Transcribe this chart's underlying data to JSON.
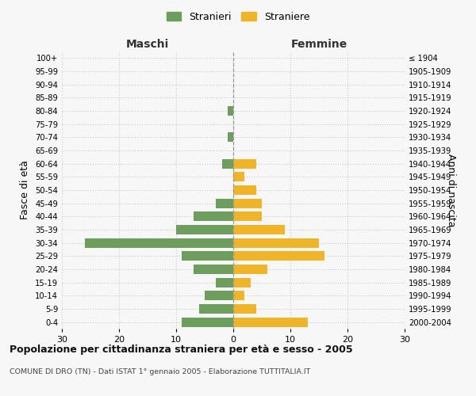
{
  "age_groups": [
    "100+",
    "95-99",
    "90-94",
    "85-89",
    "80-84",
    "75-79",
    "70-74",
    "65-69",
    "60-64",
    "55-59",
    "50-54",
    "45-49",
    "40-44",
    "35-39",
    "30-34",
    "25-29",
    "20-24",
    "15-19",
    "10-14",
    "5-9",
    "0-4"
  ],
  "birth_years": [
    "≤ 1904",
    "1905-1909",
    "1910-1914",
    "1915-1919",
    "1920-1924",
    "1925-1929",
    "1930-1934",
    "1935-1939",
    "1940-1944",
    "1945-1949",
    "1950-1954",
    "1955-1959",
    "1960-1964",
    "1965-1969",
    "1970-1974",
    "1975-1979",
    "1980-1984",
    "1985-1989",
    "1990-1994",
    "1995-1999",
    "2000-2004"
  ],
  "stranieri": [
    0,
    0,
    0,
    0,
    1,
    0,
    1,
    0,
    2,
    0,
    0,
    3,
    7,
    10,
    26,
    9,
    7,
    3,
    5,
    6,
    9
  ],
  "straniere": [
    0,
    0,
    0,
    0,
    0,
    0,
    0,
    0,
    4,
    2,
    4,
    5,
    5,
    9,
    15,
    16,
    6,
    3,
    2,
    4,
    13
  ],
  "color_stranieri": "#6e9e5e",
  "color_straniere": "#f0b429",
  "xlim": 30,
  "title": "Popolazione per cittadinanza straniera per età e sesso - 2005",
  "subtitle": "COMUNE DI DRO (TN) - Dati ISTAT 1° gennaio 2005 - Elaborazione TUTTITALIA.IT",
  "ylabel_left": "Fasce di età",
  "ylabel_right": "Anni di nascita",
  "header_left": "Maschi",
  "header_right": "Femmine",
  "legend_stranieri": "Stranieri",
  "legend_straniere": "Straniere",
  "bg_color": "#f7f7f7",
  "grid_color": "#cccccc"
}
